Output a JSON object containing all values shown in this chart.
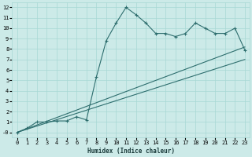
{
  "xlabel": "Humidex (Indice chaleur)",
  "bg_color": "#cceae8",
  "line_color": "#2e6e6e",
  "xlim": [
    -0.5,
    23.5
  ],
  "ylim": [
    -0.5,
    12.5
  ],
  "xticks": [
    0,
    1,
    2,
    3,
    4,
    5,
    6,
    7,
    8,
    9,
    10,
    11,
    12,
    13,
    14,
    15,
    16,
    17,
    18,
    19,
    20,
    21,
    22,
    23
  ],
  "yticks": [
    0,
    1,
    2,
    3,
    4,
    5,
    6,
    7,
    8,
    9,
    10,
    11,
    12
  ],
  "line1_x": [
    0,
    1,
    2,
    3,
    4,
    5,
    6,
    7,
    8,
    9,
    10,
    11,
    12,
    13,
    14,
    15,
    16,
    17,
    18,
    19,
    20,
    21,
    22,
    23
  ],
  "line1_y": [
    0.0,
    0.4,
    1.0,
    1.0,
    1.1,
    1.1,
    1.5,
    1.2,
    5.3,
    8.8,
    10.5,
    12.0,
    11.3,
    10.5,
    9.5,
    9.5,
    9.2,
    9.5,
    10.5,
    10.0,
    9.5,
    9.5,
    10.0,
    7.9
  ],
  "line2_x": [
    0,
    23
  ],
  "line2_y": [
    0.0,
    8.2
  ],
  "line3_x": [
    0,
    23
  ],
  "line3_y": [
    0.0,
    7.0
  ],
  "grid_color": "#a8d8d4",
  "marker": "+"
}
